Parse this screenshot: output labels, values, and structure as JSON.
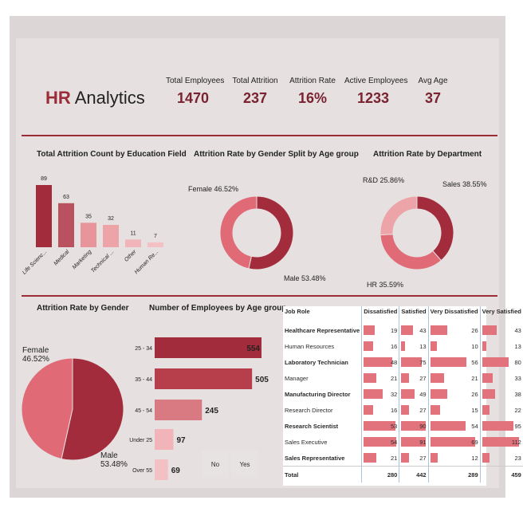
{
  "header": {
    "title_a": "HR",
    "title_b": "Analytics"
  },
  "kpis": [
    {
      "label": "Total Employees",
      "value": "1470"
    },
    {
      "label": "Total Attrition",
      "value": "237"
    },
    {
      "label": "Attrition Rate",
      "value": "16%"
    },
    {
      "label": "Active Employees",
      "value": "1233"
    },
    {
      "label": "Avg Age",
      "value": "37"
    }
  ],
  "charts": {
    "education": {
      "title": "Total Attrition Count by Education Field"
    },
    "gender_age": {
      "title": "Attrition Rate by Gender Split by Age group",
      "female": "Female 46.52%",
      "male": "Male 53.48%"
    },
    "department": {
      "title": "Attrition Rate by Department",
      "rd": "R&D 25.86%",
      "sales": "Sales 38.55%",
      "hr": "HR 35.59%"
    },
    "gender": {
      "title": "Attrition Rate by Gender",
      "female_a": "Female",
      "female_b": "46.52%",
      "male_a": "Male",
      "male_b": "53.48%"
    },
    "age": {
      "title": "Number of Employees by Age group"
    }
  },
  "slicer": {
    "no": "No",
    "yes": "Yes"
  },
  "table": {
    "headers": [
      "Job Role",
      "Dissatisfied",
      "Satisfied",
      "Very Dissatisfied",
      "Very Satisfied"
    ],
    "rows": [
      {
        "role": "Healthcare Representative",
        "v": [
          "19",
          "43",
          "26",
          "43"
        ]
      },
      {
        "role": "Human Resources",
        "v": [
          "16",
          "13",
          "10",
          "13"
        ]
      },
      {
        "role": "Laboratory Technician",
        "v": [
          "48",
          "75",
          "56",
          "80"
        ]
      },
      {
        "role": "Manager",
        "v": [
          "21",
          "27",
          "21",
          "33"
        ]
      },
      {
        "role": "Manufacturing Director",
        "v": [
          "32",
          "49",
          "26",
          "38"
        ]
      },
      {
        "role": "Research Director",
        "v": [
          "16",
          "27",
          "15",
          "22"
        ]
      },
      {
        "role": "Research Scientist",
        "v": [
          "53",
          "90",
          "54",
          "95"
        ]
      },
      {
        "role": "Sales Executive",
        "v": [
          "54",
          "91",
          "69",
          "112"
        ]
      },
      {
        "role": "Sales Representative",
        "v": [
          "21",
          "27",
          "12",
          "23"
        ]
      }
    ],
    "total": {
      "role": "Total",
      "v": [
        "280",
        "442",
        "289",
        "459"
      ]
    }
  },
  "chart_data": [
    {
      "type": "bar",
      "title": "Total Attrition Count by Education Field",
      "categories": [
        "Life Scienc...",
        "Medical",
        "Marketing",
        "Technical ...",
        "Other",
        "Human Re..."
      ],
      "values": [
        89,
        63,
        35,
        32,
        11,
        7
      ],
      "colors": [
        "#a32c3c",
        "#b9515f",
        "#e7949a",
        "#eda4a9",
        "#f1b4b8",
        "#f3c0c3"
      ]
    },
    {
      "type": "pie",
      "title": "Attrition Rate by Gender Split by Age group",
      "labels": [
        "Female",
        "Male"
      ],
      "values": [
        46.52,
        53.48
      ],
      "colors": [
        "#e06b76",
        "#a32c3c"
      ]
    },
    {
      "type": "pie",
      "title": "Attrition Rate by Department",
      "labels": [
        "Sales",
        "HR",
        "R&D"
      ],
      "values": [
        38.55,
        35.59,
        25.86
      ],
      "colors": [
        "#a32c3c",
        "#e06b76",
        "#eda4a9"
      ]
    },
    {
      "type": "pie",
      "title": "Attrition Rate by Gender",
      "labels": [
        "Female",
        "Male"
      ],
      "values": [
        46.52,
        53.48
      ],
      "colors": [
        "#e06b76",
        "#a32c3c"
      ]
    },
    {
      "type": "bar",
      "orientation": "horizontal",
      "title": "Number of Employees by Age group",
      "categories": [
        "25 - 34",
        "35 - 44",
        "45 - 54",
        "Under 25",
        "Over 55"
      ],
      "values": [
        554,
        505,
        245,
        97,
        69
      ],
      "colors": [
        "#a32c3c",
        "#b73e4b",
        "#d97a82",
        "#f1b4b8",
        "#f3c0c3"
      ]
    }
  ]
}
